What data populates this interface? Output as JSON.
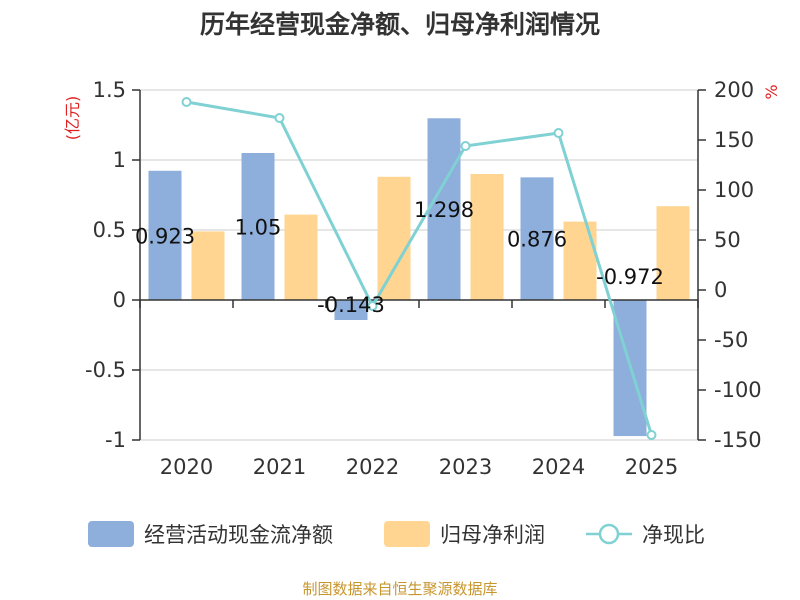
{
  "chart_data": {
    "type": "bar",
    "title": "历年经营现金净额、归母净利润情况",
    "categories": [
      "2020",
      "2021",
      "2022",
      "2023",
      "2024",
      "2025"
    ],
    "series": [
      {
        "name": "经营活动现金流净额",
        "kind": "bar",
        "axis": "left",
        "color": "#8eaedb",
        "values": [
          0.923,
          1.05,
          -0.143,
          1.298,
          0.876,
          -0.972
        ]
      },
      {
        "name": "归母净利润",
        "kind": "bar",
        "axis": "left",
        "color": "#ffd591",
        "values": [
          0.49,
          0.61,
          0.88,
          0.9,
          0.56,
          0.67
        ]
      },
      {
        "name": "净现比",
        "kind": "line",
        "axis": "right",
        "color": "#7fd1d3",
        "values": [
          188,
          172,
          -16,
          144,
          157,
          -145
        ]
      }
    ],
    "data_labels": [
      "0.923",
      "1.05",
      "-0.143",
      "1.298",
      "0.876",
      "-0.972"
    ],
    "left_axis": {
      "unit": "(亿元)",
      "ylim": [
        -1,
        1.5
      ],
      "ticks": [
        "1.5",
        "1",
        "0.5",
        "0",
        "-0.5",
        "-1"
      ]
    },
    "right_axis": {
      "unit": "%",
      "ylim": [
        -150,
        200
      ],
      "ticks": [
        "200",
        "150",
        "100",
        "50",
        "0",
        "-50",
        "-100",
        "-150"
      ]
    },
    "grid": true,
    "legend_position": "bottom"
  },
  "source": "制图数据来自恒生聚源数据库",
  "colors": {
    "bar1": "#8eaedb",
    "bar2": "#ffd591",
    "line": "#7fd1d3",
    "unit": "#e02020",
    "source": "#c8962e"
  }
}
